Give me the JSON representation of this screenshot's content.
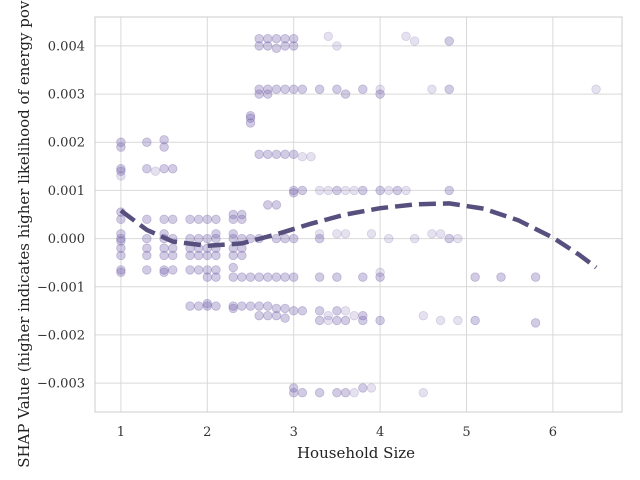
{
  "chart_data": {
    "type": "scatter",
    "title": "",
    "xlabel": "Household Size",
    "ylabel": "SHAP Value (higher indicates higher likelihood of energy poverty)",
    "xlim": [
      0.7,
      6.8
    ],
    "ylim": [
      -0.0036,
      0.0046
    ],
    "grid": true,
    "legend": "none",
    "x_ticks": [
      1,
      2,
      3,
      4,
      5,
      6
    ],
    "y_ticks": [
      -0.003,
      -0.002,
      -0.001,
      0.0,
      0.001,
      0.002,
      0.003,
      0.004
    ],
    "x_tick_labels": [
      "1",
      "2",
      "3",
      "4",
      "5",
      "6"
    ],
    "y_tick_labels": [
      "−0.003",
      "−0.002",
      "−0.001",
      "0.000",
      "0.001",
      "0.002",
      "0.003",
      "0.004"
    ],
    "colors": {
      "points": "#7b6bb0",
      "trend": "#574f7d",
      "grid": "#d9d9d9",
      "spine": "#cccccc"
    },
    "series": [
      {
        "type": "scatter",
        "points": [
          [
            1.0,
            0.002
          ],
          [
            1.0,
            0.0019
          ],
          [
            1.0,
            0.00145
          ],
          [
            1.0,
            0.0014
          ],
          [
            1.0,
            0.00055
          ],
          [
            1.0,
            0.0004
          ],
          [
            1.0,
            0.0001
          ],
          [
            1.0,
            0.0
          ],
          [
            1.0,
            -5e-05
          ],
          [
            1.0,
            -0.0002
          ],
          [
            1.0,
            -0.00035
          ],
          [
            1.0,
            -0.00065
          ],
          [
            1.0,
            -0.0007
          ],
          [
            1.3,
            0.002
          ],
          [
            1.3,
            0.00145
          ],
          [
            1.3,
            0.0004
          ],
          [
            1.3,
            0.0
          ],
          [
            1.3,
            -0.0002
          ],
          [
            1.3,
            -0.00035
          ],
          [
            1.3,
            -0.00065
          ],
          [
            1.5,
            0.00205
          ],
          [
            1.5,
            0.0019
          ],
          [
            1.5,
            0.00145
          ],
          [
            1.5,
            0.0004
          ],
          [
            1.5,
            0.0001
          ],
          [
            1.5,
            0.0
          ],
          [
            1.5,
            -0.0002
          ],
          [
            1.5,
            -0.00035
          ],
          [
            1.5,
            -0.00065
          ],
          [
            1.5,
            -0.0007
          ],
          [
            1.6,
            0.00145
          ],
          [
            1.6,
            0.0004
          ],
          [
            1.6,
            0.0
          ],
          [
            1.6,
            -0.0002
          ],
          [
            1.6,
            -0.00035
          ],
          [
            1.6,
            -0.00065
          ],
          [
            1.8,
            0.0004
          ],
          [
            1.8,
            0.0
          ],
          [
            1.8,
            -0.0002
          ],
          [
            1.8,
            -0.00035
          ],
          [
            1.8,
            -0.00065
          ],
          [
            1.8,
            -0.0014
          ],
          [
            1.9,
            0.0004
          ],
          [
            1.9,
            0.0
          ],
          [
            1.9,
            -0.0002
          ],
          [
            1.9,
            -0.00035
          ],
          [
            1.9,
            -0.00065
          ],
          [
            1.9,
            -0.0014
          ],
          [
            2.0,
            0.0004
          ],
          [
            2.0,
            0.0
          ],
          [
            2.0,
            -0.0002
          ],
          [
            2.0,
            -0.00035
          ],
          [
            2.0,
            -0.00065
          ],
          [
            2.0,
            -0.0008
          ],
          [
            2.0,
            -0.0014
          ],
          [
            2.0,
            -0.00135
          ],
          [
            2.1,
            0.0004
          ],
          [
            2.1,
            0.0001
          ],
          [
            2.1,
            0.0
          ],
          [
            2.1,
            -0.0002
          ],
          [
            2.1,
            -0.00035
          ],
          [
            2.1,
            -0.00065
          ],
          [
            2.1,
            -0.0008
          ],
          [
            2.1,
            -0.0014
          ],
          [
            2.3,
            0.0005
          ],
          [
            2.3,
            0.0004
          ],
          [
            2.3,
            0.0001
          ],
          [
            2.3,
            0.0
          ],
          [
            2.3,
            -0.0002
          ],
          [
            2.3,
            -0.00035
          ],
          [
            2.3,
            -0.0006
          ],
          [
            2.3,
            -0.0008
          ],
          [
            2.3,
            -0.0014
          ],
          [
            2.3,
            -0.00145
          ],
          [
            2.4,
            0.0005
          ],
          [
            2.4,
            0.0004
          ],
          [
            2.4,
            0.0
          ],
          [
            2.4,
            -0.0002
          ],
          [
            2.4,
            -0.00035
          ],
          [
            2.4,
            -0.0008
          ],
          [
            2.4,
            -0.0014
          ],
          [
            2.5,
            0.00255
          ],
          [
            2.5,
            0.0025
          ],
          [
            2.5,
            0.0024
          ],
          [
            2.5,
            0.0
          ],
          [
            2.5,
            -0.0008
          ],
          [
            2.5,
            -0.0014
          ],
          [
            2.6,
            0.00415
          ],
          [
            2.6,
            0.004
          ],
          [
            2.6,
            0.0031
          ],
          [
            2.6,
            0.003
          ],
          [
            2.6,
            0.00175
          ],
          [
            2.6,
            0.0
          ],
          [
            2.6,
            -0.0008
          ],
          [
            2.6,
            -0.0014
          ],
          [
            2.6,
            -0.0016
          ],
          [
            2.7,
            0.00415
          ],
          [
            2.7,
            0.004
          ],
          [
            2.7,
            0.0031
          ],
          [
            2.7,
            0.003
          ],
          [
            2.7,
            0.00175
          ],
          [
            2.7,
            0.0007
          ],
          [
            2.7,
            -0.0008
          ],
          [
            2.7,
            -0.0014
          ],
          [
            2.7,
            -0.0016
          ],
          [
            2.8,
            0.00415
          ],
          [
            2.8,
            0.00395
          ],
          [
            2.8,
            0.0031
          ],
          [
            2.8,
            0.00175
          ],
          [
            2.8,
            0.0007
          ],
          [
            2.8,
            0.0
          ],
          [
            2.8,
            -0.0008
          ],
          [
            2.8,
            -0.00145
          ],
          [
            2.8,
            -0.0016
          ],
          [
            2.9,
            0.00415
          ],
          [
            2.9,
            0.004
          ],
          [
            2.9,
            0.0031
          ],
          [
            2.9,
            0.00175
          ],
          [
            2.9,
            0.0
          ],
          [
            2.9,
            -0.0008
          ],
          [
            2.9,
            -0.00145
          ],
          [
            2.9,
            -0.00165
          ],
          [
            3.0,
            0.00415
          ],
          [
            3.0,
            0.004
          ],
          [
            3.0,
            0.0031
          ],
          [
            3.0,
            0.00175
          ],
          [
            3.0,
            0.001
          ],
          [
            3.0,
            0.00095
          ],
          [
            3.0,
            0.0
          ],
          [
            3.0,
            -0.0008
          ],
          [
            3.0,
            -0.0015
          ],
          [
            3.0,
            -0.0031
          ],
          [
            3.0,
            -0.0032
          ],
          [
            3.1,
            0.0031
          ],
          [
            3.1,
            0.001
          ],
          [
            3.1,
            -0.0015
          ],
          [
            3.1,
            -0.0032
          ],
          [
            3.3,
            0.0031
          ],
          [
            3.3,
            0.0
          ],
          [
            3.3,
            -0.0008
          ],
          [
            3.3,
            -0.0015
          ],
          [
            3.3,
            -0.0017
          ],
          [
            3.3,
            -0.0032
          ],
          [
            3.5,
            0.0031
          ],
          [
            3.5,
            0.001
          ],
          [
            3.5,
            -0.0008
          ],
          [
            3.5,
            -0.0015
          ],
          [
            3.5,
            -0.0017
          ],
          [
            3.5,
            -0.0032
          ],
          [
            3.6,
            0.003
          ],
          [
            3.6,
            -0.0017
          ],
          [
            3.6,
            -0.0032
          ],
          [
            3.8,
            0.0031
          ],
          [
            3.8,
            0.001
          ],
          [
            3.8,
            -0.0008
          ],
          [
            3.8,
            -0.0016
          ],
          [
            3.8,
            -0.0017
          ],
          [
            3.8,
            -0.0031
          ],
          [
            4.0,
            0.003
          ],
          [
            4.0,
            0.001
          ],
          [
            4.0,
            -0.0008
          ],
          [
            4.0,
            -0.0017
          ],
          [
            4.2,
            0.001
          ],
          [
            4.8,
            0.0041
          ],
          [
            4.8,
            0.0031
          ],
          [
            4.8,
            0.001
          ],
          [
            4.8,
            0.0
          ],
          [
            5.1,
            -0.0008
          ],
          [
            5.1,
            -0.0017
          ],
          [
            5.4,
            -0.0008
          ],
          [
            5.8,
            -0.0008
          ],
          [
            5.8,
            -0.00175
          ]
        ]
      },
      {
        "type": "scatter_faint",
        "points": [
          [
            1.0,
            0.0013
          ],
          [
            1.4,
            0.0014
          ],
          [
            3.1,
            0.0017
          ],
          [
            3.2,
            0.0017
          ],
          [
            3.3,
            0.001
          ],
          [
            3.3,
            0.0001
          ],
          [
            3.4,
            0.001
          ],
          [
            3.4,
            0.0042
          ],
          [
            3.4,
            -0.0016
          ],
          [
            3.4,
            -0.0017
          ],
          [
            3.5,
            0.004
          ],
          [
            3.5,
            0.0001
          ],
          [
            3.6,
            0.001
          ],
          [
            3.6,
            0.0001
          ],
          [
            3.6,
            -0.0015
          ],
          [
            3.7,
            0.001
          ],
          [
            3.7,
            -0.0016
          ],
          [
            3.7,
            -0.0032
          ],
          [
            3.9,
            -0.0031
          ],
          [
            3.9,
            0.0001
          ],
          [
            4.0,
            0.0031
          ],
          [
            4.0,
            -0.0007
          ],
          [
            4.1,
            0.001
          ],
          [
            4.1,
            0.0
          ],
          [
            4.3,
            0.0042
          ],
          [
            4.3,
            0.001
          ],
          [
            4.4,
            0.0041
          ],
          [
            4.4,
            0.0
          ],
          [
            4.5,
            -0.0032
          ],
          [
            4.5,
            -0.0016
          ],
          [
            4.6,
            0.0031
          ],
          [
            4.6,
            0.0001
          ],
          [
            4.7,
            0.0001
          ],
          [
            4.7,
            -0.0017
          ],
          [
            4.9,
            -0.0017
          ],
          [
            4.9,
            0.0
          ],
          [
            6.5,
            0.0031
          ]
        ]
      }
    ],
    "trend": {
      "style": "dashed",
      "points": [
        [
          1.0,
          0.00058
        ],
        [
          1.3,
          0.00018
        ],
        [
          1.6,
          -6e-05
        ],
        [
          2.0,
          -0.00015
        ],
        [
          2.4,
          -0.0001
        ],
        [
          2.8,
          9e-05
        ],
        [
          3.2,
          0.00031
        ],
        [
          3.6,
          0.0005
        ],
        [
          4.0,
          0.00063
        ],
        [
          4.4,
          0.00071
        ],
        [
          4.8,
          0.00073
        ],
        [
          5.2,
          0.00062
        ],
        [
          5.6,
          0.00038
        ],
        [
          6.0,
          2e-05
        ],
        [
          6.3,
          -0.00033
        ],
        [
          6.5,
          -0.0006
        ]
      ]
    }
  }
}
